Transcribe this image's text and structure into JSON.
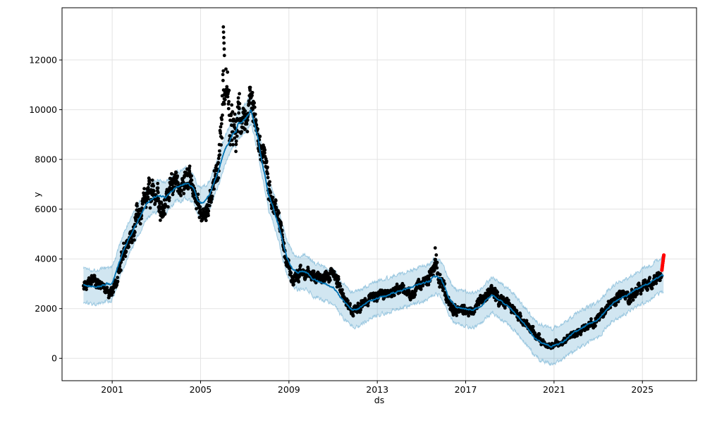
{
  "figure": {
    "background": "#ffffff"
  },
  "chart_data": {
    "type": "line",
    "title": "",
    "xlabel": "ds",
    "ylabel": "y",
    "grid": true,
    "legend": "none",
    "xlim": [
      1998.73,
      2027.45
    ],
    "ylim": [
      -900,
      14100
    ],
    "xticks": [
      2001,
      2005,
      2009,
      2013,
      2017,
      2021,
      2025
    ],
    "yticks": [
      0,
      2000,
      4000,
      6000,
      8000,
      10000,
      12000
    ],
    "colors": {
      "forecast_line": "#0072B2",
      "band_fill": "rgba(0,114,178,0.18)",
      "band_edge": "rgba(0,114,178,0.32)",
      "observations": "#000000",
      "recent": "#ff0000",
      "grid": "#e3e3e3",
      "spine": "#000000",
      "text": "#000000"
    },
    "series_names": [
      "observations (black dots)",
      "forecast yhat (blue line)",
      "uncertainty interval (light blue band)",
      "recent observations (red dots)"
    ],
    "forecast": {
      "name": "yhat",
      "keypoints": [
        [
          1999.7,
          2950
        ],
        [
          2000.2,
          2870
        ],
        [
          2000.5,
          2900
        ],
        [
          2000.75,
          3000
        ],
        [
          2000.95,
          2960
        ],
        [
          2001.1,
          3250
        ],
        [
          2001.3,
          3800
        ],
        [
          2001.5,
          4300
        ],
        [
          2001.75,
          4800
        ],
        [
          2002.0,
          5250
        ],
        [
          2002.3,
          5750
        ],
        [
          2002.55,
          6200
        ],
        [
          2002.9,
          6500
        ],
        [
          2003.15,
          6550
        ],
        [
          2003.4,
          6470
        ],
        [
          2003.6,
          6620
        ],
        [
          2003.9,
          6900
        ],
        [
          2004.1,
          6950
        ],
        [
          2004.35,
          7050
        ],
        [
          2004.55,
          6940
        ],
        [
          2004.7,
          6800
        ],
        [
          2004.85,
          6380
        ],
        [
          2005.0,
          6240
        ],
        [
          2005.15,
          6300
        ],
        [
          2005.4,
          6570
        ],
        [
          2005.6,
          7040
        ],
        [
          2005.8,
          7510
        ],
        [
          2006.0,
          8100
        ],
        [
          2006.12,
          8410
        ],
        [
          2006.3,
          8700
        ],
        [
          2006.45,
          9030
        ],
        [
          2006.6,
          9120
        ],
        [
          2006.7,
          9450
        ],
        [
          2006.85,
          9500
        ],
        [
          2007.05,
          9640
        ],
        [
          2007.28,
          9980
        ],
        [
          2007.45,
          9400
        ],
        [
          2007.6,
          8840
        ],
        [
          2007.76,
          7990
        ],
        [
          2007.92,
          7320
        ],
        [
          2008.08,
          6570
        ],
        [
          2008.25,
          6190
        ],
        [
          2008.4,
          5720
        ],
        [
          2008.56,
          5250
        ],
        [
          2008.72,
          4680
        ],
        [
          2008.9,
          4100
        ],
        [
          2009.05,
          3780
        ],
        [
          2009.2,
          3550
        ],
        [
          2009.4,
          3450
        ],
        [
          2009.6,
          3500
        ],
        [
          2009.85,
          3430
        ],
        [
          2010.1,
          3170
        ],
        [
          2010.45,
          3070
        ],
        [
          2010.8,
          2930
        ],
        [
          2011.0,
          2880
        ],
        [
          2011.25,
          2550
        ],
        [
          2011.55,
          2220
        ],
        [
          2011.75,
          2030
        ],
        [
          2011.9,
          1940
        ],
        [
          2012.2,
          2030
        ],
        [
          2012.5,
          2220
        ],
        [
          2012.85,
          2360
        ],
        [
          2013.15,
          2460
        ],
        [
          2013.5,
          2550
        ],
        [
          2013.8,
          2650
        ],
        [
          2014.1,
          2740
        ],
        [
          2014.45,
          2830
        ],
        [
          2014.75,
          2930
        ],
        [
          2015.1,
          3020
        ],
        [
          2015.4,
          3120
        ],
        [
          2015.55,
          3310
        ],
        [
          2015.72,
          3260
        ],
        [
          2015.9,
          3170
        ],
        [
          2016.05,
          2880
        ],
        [
          2016.2,
          2500
        ],
        [
          2016.35,
          2310
        ],
        [
          2016.55,
          2080
        ],
        [
          2016.8,
          2030
        ],
        [
          2017.0,
          1985
        ],
        [
          2017.3,
          1940
        ],
        [
          2017.65,
          2080
        ],
        [
          2017.95,
          2360
        ],
        [
          2018.22,
          2550
        ],
        [
          2018.5,
          2360
        ],
        [
          2018.8,
          2170
        ],
        [
          2019.1,
          1940
        ],
        [
          2019.45,
          1610
        ],
        [
          2019.77,
          1230
        ],
        [
          2020.1,
          850
        ],
        [
          2020.4,
          630
        ],
        [
          2020.6,
          570
        ],
        [
          2020.75,
          520
        ],
        [
          2020.9,
          470
        ],
        [
          2021.05,
          530
        ],
        [
          2021.2,
          570
        ],
        [
          2021.4,
          660
        ],
        [
          2021.55,
          760
        ],
        [
          2021.7,
          900
        ],
        [
          2021.85,
          990
        ],
        [
          2022.0,
          1090
        ],
        [
          2022.2,
          1180
        ],
        [
          2022.4,
          1300
        ],
        [
          2022.6,
          1400
        ],
        [
          2022.8,
          1465
        ],
        [
          2023.0,
          1560
        ],
        [
          2023.2,
          1760
        ],
        [
          2023.4,
          1990
        ],
        [
          2023.7,
          2220
        ],
        [
          2024.0,
          2410
        ],
        [
          2024.35,
          2550
        ],
        [
          2024.65,
          2740
        ],
        [
          2024.97,
          2880
        ],
        [
          2025.3,
          3020
        ],
        [
          2025.6,
          3210
        ],
        [
          2025.88,
          3360
        ],
        [
          2025.96,
          3310
        ]
      ],
      "band_halfwidth_keypoints": [
        [
          1999.7,
          700
        ],
        [
          2003.0,
          620
        ],
        [
          2006.0,
          560
        ],
        [
          2007.5,
          560
        ],
        [
          2009.0,
          680
        ],
        [
          2013.0,
          700
        ],
        [
          2018.0,
          700
        ],
        [
          2021.0,
          720
        ],
        [
          2025.96,
          680
        ]
      ]
    },
    "observations": {
      "note": "monthly center and half-range of daily observations, estimated from plot",
      "keypoints": [
        [
          1999.7,
          2950,
          180
        ],
        [
          1999.9,
          2950,
          220
        ],
        [
          2000.05,
          3300,
          350
        ],
        [
          2000.25,
          3200,
          330
        ],
        [
          2000.45,
          2950,
          250
        ],
        [
          2000.65,
          2800,
          220
        ],
        [
          2000.85,
          2700,
          230
        ],
        [
          2001.05,
          2750,
          280
        ],
        [
          2001.2,
          3200,
          350
        ],
        [
          2001.4,
          3900,
          400
        ],
        [
          2001.6,
          4400,
          400
        ],
        [
          2001.8,
          4750,
          380
        ],
        [
          2002.0,
          5300,
          550
        ],
        [
          2002.2,
          5800,
          600
        ],
        [
          2002.4,
          6300,
          650
        ],
        [
          2002.6,
          6700,
          700
        ],
        [
          2002.78,
          6300,
          700
        ],
        [
          2002.95,
          6800,
          600
        ],
        [
          2003.1,
          6500,
          600
        ],
        [
          2003.3,
          5950,
          620
        ],
        [
          2003.5,
          6400,
          550
        ],
        [
          2003.7,
          6900,
          600
        ],
        [
          2003.9,
          7150,
          600
        ],
        [
          2004.1,
          6850,
          580
        ],
        [
          2004.3,
          7400,
          650
        ],
        [
          2004.5,
          7350,
          580
        ],
        [
          2004.65,
          7000,
          520
        ],
        [
          2004.8,
          6500,
          500
        ],
        [
          2004.95,
          5950,
          500
        ],
        [
          2005.1,
          5800,
          450
        ],
        [
          2005.3,
          6000,
          450
        ],
        [
          2005.5,
          6600,
          520
        ],
        [
          2005.7,
          7350,
          620
        ],
        [
          2005.85,
          8300,
          800
        ],
        [
          2005.97,
          9800,
          1400
        ],
        [
          2006.05,
          11200,
          1500
        ],
        [
          2006.15,
          10400,
          1400
        ],
        [
          2006.3,
          9600,
          1350
        ],
        [
          2006.45,
          9000,
          1300
        ],
        [
          2006.6,
          9400,
          1150
        ],
        [
          2006.75,
          9800,
          1000
        ],
        [
          2006.9,
          9200,
          850
        ],
        [
          2007.05,
          9700,
          750
        ],
        [
          2007.2,
          10300,
          850
        ],
        [
          2007.35,
          10150,
          850
        ],
        [
          2007.5,
          9400,
          750
        ],
        [
          2007.65,
          8900,
          650
        ],
        [
          2007.8,
          8400,
          650
        ],
        [
          2007.95,
          7700,
          600
        ],
        [
          2008.1,
          6900,
          550
        ],
        [
          2008.25,
          6200,
          520
        ],
        [
          2008.4,
          6150,
          480
        ],
        [
          2008.55,
          5600,
          480
        ],
        [
          2008.7,
          4900,
          450
        ],
        [
          2008.85,
          4200,
          420
        ],
        [
          2009.0,
          3500,
          380
        ],
        [
          2009.15,
          3150,
          320
        ],
        [
          2009.35,
          3300,
          300
        ],
        [
          2009.55,
          3450,
          300
        ],
        [
          2009.75,
          3500,
          300
        ],
        [
          2009.95,
          3350,
          300
        ],
        [
          2010.15,
          3300,
          280
        ],
        [
          2010.35,
          3350,
          280
        ],
        [
          2010.55,
          3200,
          280
        ],
        [
          2010.75,
          3300,
          300
        ],
        [
          2010.95,
          3500,
          300
        ],
        [
          2011.15,
          3250,
          320
        ],
        [
          2011.35,
          2750,
          350
        ],
        [
          2011.55,
          2350,
          300
        ],
        [
          2011.75,
          2050,
          280
        ],
        [
          2011.95,
          1950,
          270
        ],
        [
          2012.15,
          2050,
          260
        ],
        [
          2012.35,
          2250,
          250
        ],
        [
          2012.55,
          2350,
          250
        ],
        [
          2012.75,
          2450,
          230
        ],
        [
          2012.95,
          2400,
          230
        ],
        [
          2013.15,
          2550,
          230
        ],
        [
          2013.35,
          2550,
          230
        ],
        [
          2013.55,
          2500,
          230
        ],
        [
          2013.75,
          2750,
          230
        ],
        [
          2013.95,
          2850,
          240
        ],
        [
          2014.15,
          2750,
          240
        ],
        [
          2014.35,
          2600,
          240
        ],
        [
          2014.55,
          2550,
          240
        ],
        [
          2014.75,
          2850,
          240
        ],
        [
          2014.95,
          2950,
          250
        ],
        [
          2015.15,
          3100,
          260
        ],
        [
          2015.35,
          3250,
          300
        ],
        [
          2015.5,
          3600,
          500
        ],
        [
          2015.62,
          3900,
          640
        ],
        [
          2015.75,
          3400,
          380
        ],
        [
          2015.9,
          3150,
          320
        ],
        [
          2016.05,
          2700,
          330
        ],
        [
          2016.2,
          2350,
          300
        ],
        [
          2016.35,
          2050,
          280
        ],
        [
          2016.55,
          1850,
          220
        ],
        [
          2016.75,
          1950,
          220
        ],
        [
          2016.95,
          2050,
          220
        ],
        [
          2017.15,
          1950,
          230
        ],
        [
          2017.35,
          1900,
          250
        ],
        [
          2017.55,
          2150,
          260
        ],
        [
          2017.75,
          2400,
          300
        ],
        [
          2017.95,
          2550,
          300
        ],
        [
          2018.15,
          2650,
          300
        ],
        [
          2018.3,
          2600,
          280
        ],
        [
          2018.45,
          2400,
          280
        ],
        [
          2018.65,
          2250,
          260
        ],
        [
          2018.85,
          2200,
          250
        ],
        [
          2019.05,
          2000,
          220
        ],
        [
          2019.25,
          1800,
          220
        ],
        [
          2019.45,
          1650,
          200
        ],
        [
          2019.65,
          1500,
          200
        ],
        [
          2019.85,
          1350,
          200
        ],
        [
          2020.05,
          1100,
          200
        ],
        [
          2020.25,
          880,
          180
        ],
        [
          2020.45,
          700,
          150
        ],
        [
          2020.65,
          580,
          130
        ],
        [
          2020.85,
          490,
          120
        ],
        [
          2021.05,
          560,
          140
        ],
        [
          2021.25,
          660,
          150
        ],
        [
          2021.45,
          760,
          160
        ],
        [
          2021.65,
          860,
          160
        ],
        [
          2021.85,
          950,
          170
        ],
        [
          2022.05,
          1060,
          180
        ],
        [
          2022.25,
          1160,
          190
        ],
        [
          2022.45,
          1300,
          200
        ],
        [
          2022.65,
          1400,
          210
        ],
        [
          2022.85,
          1520,
          230
        ],
        [
          2023.05,
          1750,
          250
        ],
        [
          2023.25,
          1950,
          250
        ],
        [
          2023.45,
          2100,
          260
        ],
        [
          2023.65,
          2250,
          270
        ],
        [
          2023.85,
          2400,
          280
        ],
        [
          2024.05,
          2550,
          290
        ],
        [
          2024.25,
          2550,
          310
        ],
        [
          2024.45,
          2350,
          330
        ],
        [
          2024.65,
          2700,
          300
        ],
        [
          2024.85,
          2850,
          280
        ],
        [
          2025.05,
          2900,
          280
        ],
        [
          2025.25,
          2950,
          300
        ],
        [
          2025.45,
          3100,
          280
        ],
        [
          2025.65,
          3250,
          250
        ],
        [
          2025.86,
          3420,
          220
        ]
      ],
      "outliers": [
        [
          2006.03,
          13330
        ],
        [
          2006.04,
          13120
        ],
        [
          2006.05,
          12900
        ],
        [
          2006.06,
          12680
        ],
        [
          2006.07,
          12440
        ],
        [
          2006.08,
          12180
        ]
      ]
    },
    "recent": {
      "name": "recent observations",
      "x": [
        2025.88,
        2025.89,
        2025.9,
        2025.91,
        2025.92,
        2025.93,
        2025.94,
        2025.95,
        2025.96,
        2025.97
      ],
      "y": [
        3545,
        3610,
        3680,
        3750,
        3830,
        3900,
        3970,
        4040,
        4100,
        4150
      ]
    }
  }
}
